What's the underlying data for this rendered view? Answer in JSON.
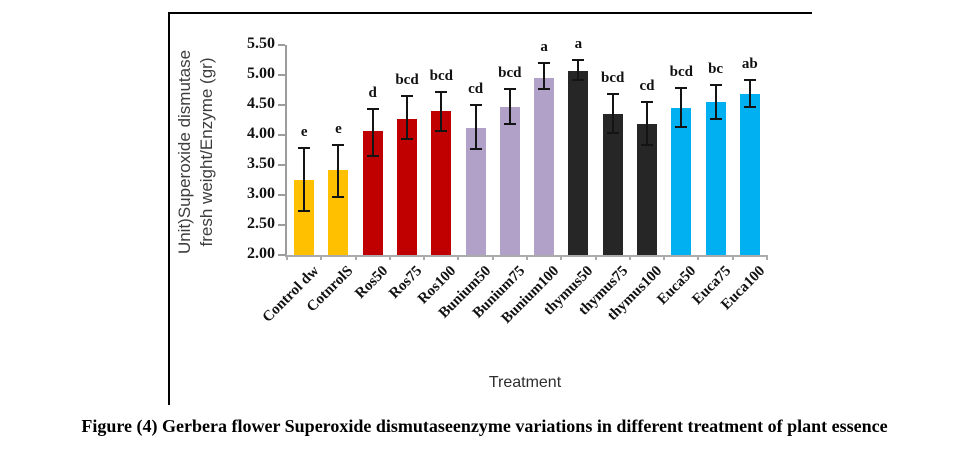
{
  "figure_caption": "Figure (4) Gerbera flower Superoxide dismutaseenzyme variations in different treatment of plant essence",
  "chart_data": {
    "type": "bar",
    "title": "",
    "xlabel": "Treatment",
    "ylabel": "Unit)Superoxide dismutase fresh weight/Enzyme (gr)",
    "ylabel_lines": [
      "Unit)Superoxide dismutase",
      "fresh weight/Enzyme (gr)"
    ],
    "ylim": [
      2.0,
      5.5
    ],
    "ytick_labels": [
      "2.00",
      "2.50",
      "3.00",
      "3.50",
      "4.00",
      "4.50",
      "5.00",
      "5.50"
    ],
    "grid": false,
    "legend": "none",
    "categories": [
      "Control dw",
      "CotnrolS",
      "Ros50",
      "Ros75",
      "Ros100",
      "Bunium50",
      "Bunium75",
      "Bunium100",
      "thymus50",
      "thymus75",
      "thymus100",
      "Euca50",
      "Euca75",
      "Euca100"
    ],
    "values": [
      3.25,
      3.41,
      4.06,
      4.27,
      4.4,
      4.12,
      4.47,
      4.95,
      5.07,
      4.35,
      4.18,
      4.45,
      4.55,
      4.68
    ],
    "error_low": [
      2.73,
      2.96,
      3.65,
      3.93,
      4.06,
      3.76,
      4.18,
      4.77,
      4.91,
      4.03,
      3.84,
      4.13,
      4.27,
      4.46
    ],
    "error_high": [
      3.78,
      3.84,
      4.44,
      4.65,
      4.72,
      4.5,
      4.77,
      5.2,
      5.25,
      4.68,
      4.55,
      4.78,
      4.84,
      4.92
    ],
    "sig_letters": [
      "e",
      "e",
      "d",
      "bcd",
      "bcd",
      "cd",
      "bcd",
      "a",
      "a",
      "bcd",
      "cd",
      "bcd",
      "bc",
      "ab"
    ],
    "bar_colors": [
      "#FFC000",
      "#FFC000",
      "#C00000",
      "#C00000",
      "#C00000",
      "#B1A0C7",
      "#B1A0C7",
      "#B1A0C7",
      "#262626",
      "#262626",
      "#262626",
      "#00B0F0",
      "#00B0F0",
      "#00B0F0"
    ],
    "groups": [
      {
        "name": "Control",
        "color": "#FFC000"
      },
      {
        "name": "Ros",
        "color": "#C00000"
      },
      {
        "name": "Bunium",
        "color": "#B1A0C7"
      },
      {
        "name": "thymus",
        "color": "#262626"
      },
      {
        "name": "Euca",
        "color": "#00B0F0"
      }
    ],
    "axis_color": "#ABABAB",
    "error_bar_color": "#141414"
  }
}
